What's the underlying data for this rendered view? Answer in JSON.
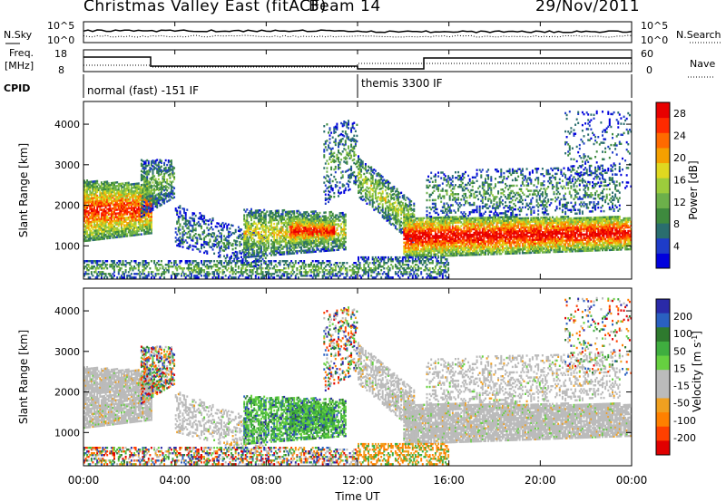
{
  "header": {
    "station": "Christmas Valley East (fitACF)",
    "beam": "Beam 14",
    "date": "29/Nov/2011"
  },
  "top_panels": {
    "noise_label": "N.Sky",
    "noise_ticks": [
      "10^5",
      "10^0"
    ],
    "noise_right_label": "N.Search",
    "freq_label_1": "Freq.",
    "freq_label_2": "[MHz]",
    "freq_ticks": [
      "18",
      "8"
    ],
    "nave_label": "Nave",
    "nave_ticks": [
      "60",
      "0"
    ],
    "cpid_label": "CPID",
    "cpid_segments": [
      {
        "label": "normal (fast) -151 IF",
        "start_hour": 0,
        "end_hour": 12
      },
      {
        "label": "themis 3300 IF",
        "start_hour": 12,
        "end_hour": 24
      }
    ]
  },
  "x_axis": {
    "label": "Time UT",
    "ticks": [
      "00:00",
      "04:00",
      "08:00",
      "12:00",
      "16:00",
      "20:00",
      "00:00"
    ]
  },
  "chart_data": [
    {
      "type": "heatmap",
      "name": "power",
      "ylabel": "Slant Range [km]",
      "yticks": [
        1000,
        2000,
        3000,
        4000
      ],
      "ylim": [
        180,
        4560
      ],
      "xlim_hours": [
        0,
        24
      ],
      "colorbar_label": "Power [dB]",
      "colorbar_ticks": [
        4,
        8,
        12,
        16,
        20,
        24,
        28
      ],
      "colorbar_range": [
        0,
        30
      ],
      "colors": [
        "#0000dd",
        "#1e3cc8",
        "#2a6e6e",
        "#3e8a3e",
        "#6cb04a",
        "#9ccc3c",
        "#e0d820",
        "#f5a000",
        "#ff6a00",
        "#ff2a00",
        "#e80000"
      ]
    },
    {
      "type": "heatmap",
      "name": "velocity",
      "ylabel": "Slant Range [km]",
      "yticks": [
        1000,
        2000,
        3000,
        4000
      ],
      "ylim": [
        180,
        4560
      ],
      "xlim_hours": [
        0,
        24
      ],
      "colorbar_label": "Velocity [m s^-1]",
      "colorbar_ticks": [
        200,
        100,
        50,
        15,
        -15,
        -50,
        -100,
        -200
      ],
      "colors": [
        "#2a2aa8",
        "#2a60c0",
        "#2e7a2e",
        "#3fae3f",
        "#66d040",
        "#bbbbbb",
        "#bbbbbb",
        "#f0a020",
        "#ff8000",
        "#ff4000",
        "#e00000"
      ],
      "ground_scatter_color": "#bbbbbb"
    }
  ]
}
